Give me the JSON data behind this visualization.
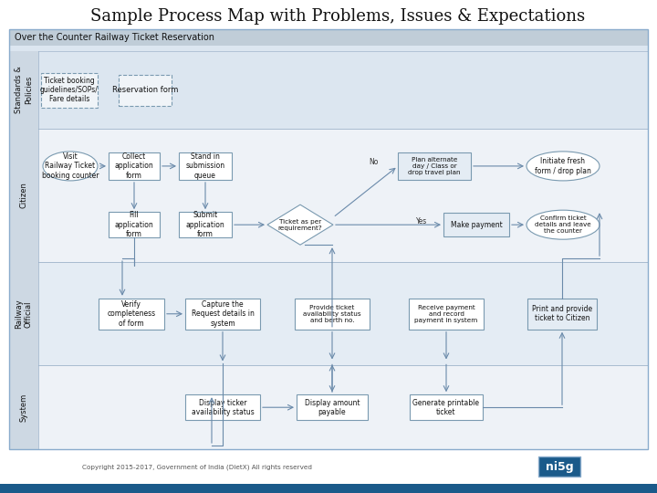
{
  "title": "Sample Process Map with Problems, Issues & Expectations",
  "title_fontsize": 13,
  "subtitle": "Over the Counter Railway Ticket Reservation",
  "copyright_text": "Copyright 2015-2017, Government of India (DietX) All rights reserved",
  "bg_color": "#ffffff",
  "header_bg": "#c8d4e0",
  "lane_label_bg": "#cdd8e3",
  "lane_colors": [
    "#dce6f0",
    "#eef2f7",
    "#e4ecf4",
    "#eef2f7"
  ],
  "lane_labels": [
    "Standards &\nPolicies",
    "Citizen",
    "Railway\nOfficial",
    "System"
  ],
  "box_fc": "#ffffff",
  "box_ec": "#7a9ab0",
  "arrow_color": "#6a8aaa",
  "footer_bar_color": "#1a5a8a",
  "logo_bg": "#1a5a8a",
  "logo_text": "ni5g"
}
